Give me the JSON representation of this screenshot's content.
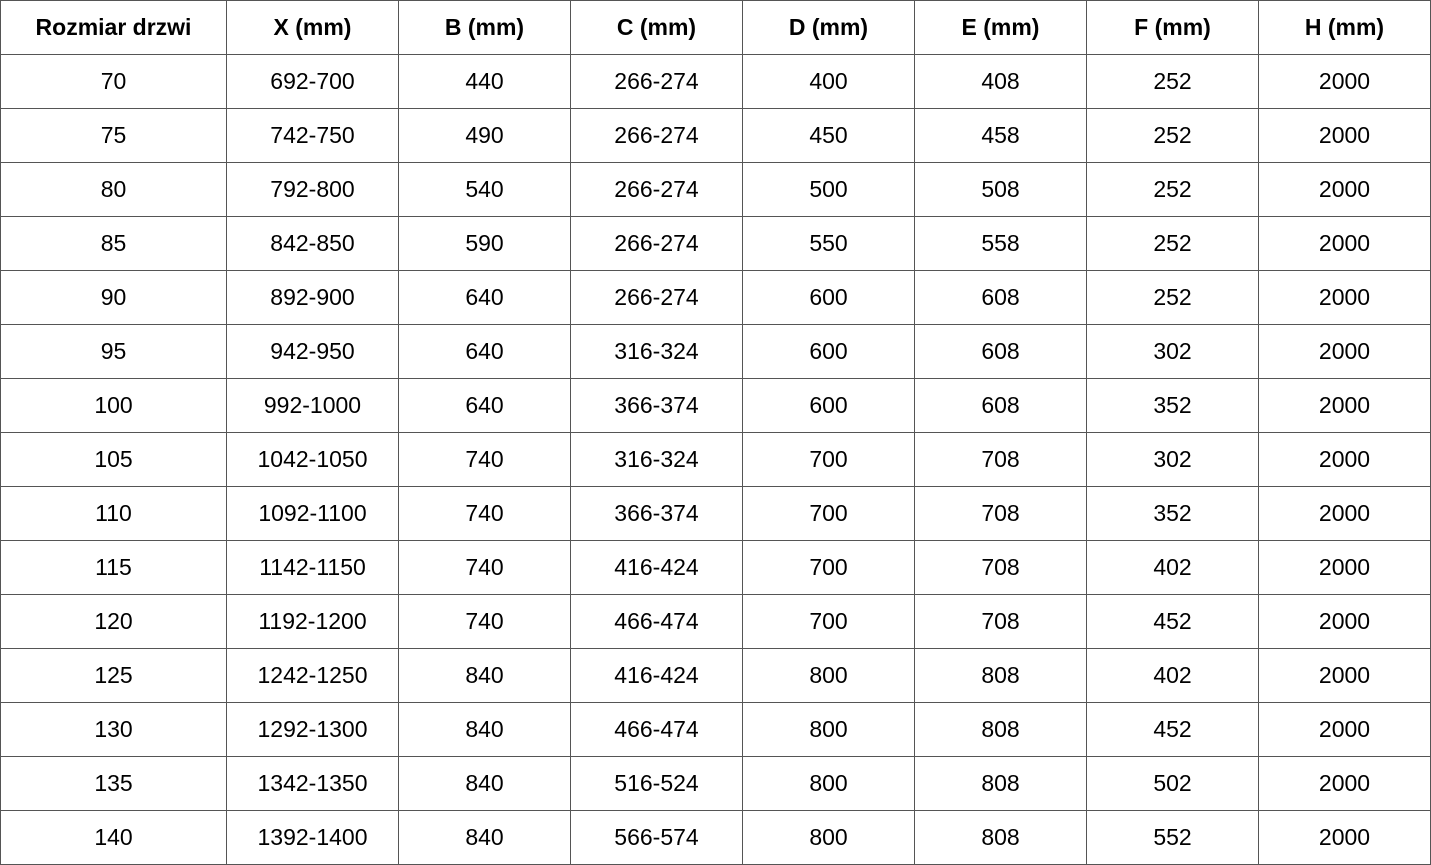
{
  "table": {
    "header": [
      "Rozmiar drzwi",
      "X (mm)",
      "B (mm)",
      "C (mm)",
      "D (mm)",
      "E (mm)",
      "F (mm)",
      "H (mm)"
    ],
    "rows": [
      [
        "70",
        "692-700",
        "440",
        "266-274",
        "400",
        "408",
        "252",
        "2000"
      ],
      [
        "75",
        "742-750",
        "490",
        "266-274",
        "450",
        "458",
        "252",
        "2000"
      ],
      [
        "80",
        "792-800",
        "540",
        "266-274",
        "500",
        "508",
        "252",
        "2000"
      ],
      [
        "85",
        "842-850",
        "590",
        "266-274",
        "550",
        "558",
        "252",
        "2000"
      ],
      [
        "90",
        "892-900",
        "640",
        "266-274",
        "600",
        "608",
        "252",
        "2000"
      ],
      [
        "95",
        "942-950",
        "640",
        "316-324",
        "600",
        "608",
        "302",
        "2000"
      ],
      [
        "100",
        "992-1000",
        "640",
        "366-374",
        "600",
        "608",
        "352",
        "2000"
      ],
      [
        "105",
        "1042-1050",
        "740",
        "316-324",
        "700",
        "708",
        "302",
        "2000"
      ],
      [
        "110",
        "1092-1100",
        "740",
        "366-374",
        "700",
        "708",
        "352",
        "2000"
      ],
      [
        "115",
        "1142-1150",
        "740",
        "416-424",
        "700",
        "708",
        "402",
        "2000"
      ],
      [
        "120",
        "1192-1200",
        "740",
        "466-474",
        "700",
        "708",
        "452",
        "2000"
      ],
      [
        "125",
        "1242-1250",
        "840",
        "416-424",
        "800",
        "808",
        "402",
        "2000"
      ],
      [
        "130",
        "1292-1300",
        "840",
        "466-474",
        "800",
        "808",
        "452",
        "2000"
      ],
      [
        "135",
        "1342-1350",
        "840",
        "516-524",
        "800",
        "808",
        "502",
        "2000"
      ],
      [
        "140",
        "1392-1400",
        "840",
        "566-574",
        "800",
        "808",
        "552",
        "2000"
      ]
    ]
  }
}
